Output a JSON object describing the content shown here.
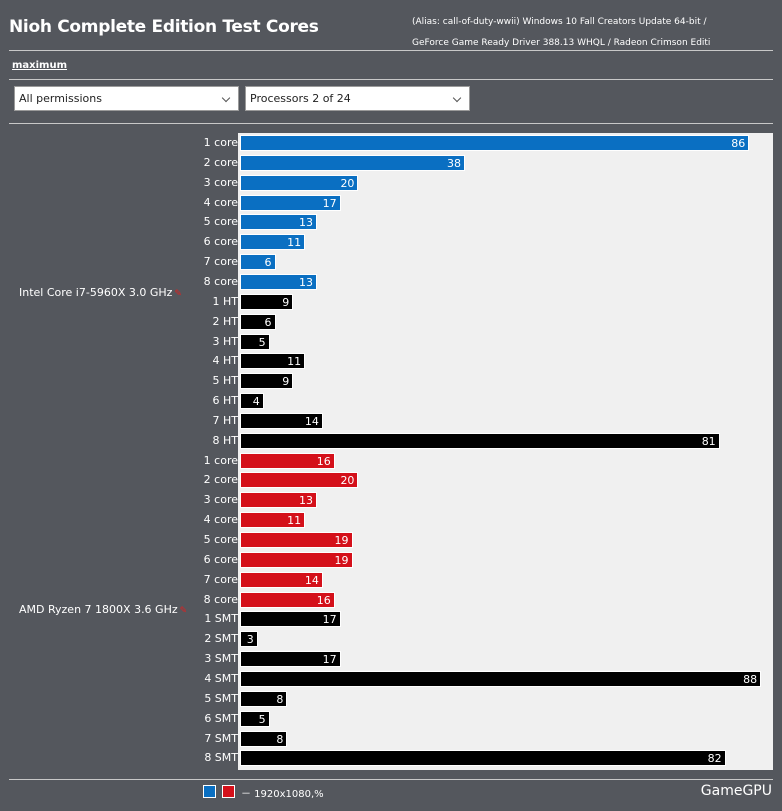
{
  "header": {
    "title": "Nioh Complete Edition Test Cores",
    "subtitle_line1": "(Alias: call-of-duty-wwii) Windows 10 Fall Creators Update 64-bit /",
    "subtitle_line2": "GeForce Game Ready Driver 388.13 WHQL / Radeon Crimson Editi"
  },
  "controls": {
    "view_link": "maximum",
    "permissions_select": "All permissions",
    "processors_select": "Processors 2 of 24"
  },
  "legend": {
    "text": "－ 1920x1080,%",
    "brand": "GameGPU",
    "colors": [
      "#0a6fc2",
      "#d4101a"
    ]
  },
  "colors": {
    "intel_core": "#0a6fc2",
    "amd_core": "#d4101a",
    "thread": "#000000",
    "plot_bg": "#f0f0f0"
  },
  "chart_data": {
    "type": "bar",
    "orientation": "horizontal",
    "title": "Nioh Complete Edition Test Cores",
    "xlim": [
      0,
      90
    ],
    "groups": [
      {
        "name": "Intel Core i7-5960X 3.0 GHz",
        "marker": "✎",
        "categories": [
          "1 core",
          "2 core",
          "3 core",
          "4 core",
          "5 core",
          "6 core",
          "7 core",
          "8 core",
          "1 HT",
          "2 HT",
          "3 HT",
          "4 HT",
          "5 HT",
          "6 HT",
          "7 HT",
          "8 HT"
        ],
        "values": [
          86,
          38,
          20,
          17,
          13,
          11,
          6,
          13,
          9,
          6,
          5,
          11,
          9,
          4,
          14,
          81
        ],
        "kinds": [
          "core",
          "core",
          "core",
          "core",
          "core",
          "core",
          "core",
          "core",
          "thread",
          "thread",
          "thread",
          "thread",
          "thread",
          "thread",
          "thread",
          "thread"
        ]
      },
      {
        "name": "AMD Ryzen 7 1800X 3.6 GHz",
        "marker": "✎",
        "categories": [
          "1 core",
          "2 core",
          "3 core",
          "4 core",
          "5 core",
          "6 core",
          "7 core",
          "8 core",
          "1 SMT",
          "2 SMT",
          "3 SMT",
          "4 SMT",
          "5 SMT",
          "6 SMT",
          "7 SMT",
          "8 SMT"
        ],
        "values": [
          16,
          20,
          13,
          11,
          19,
          19,
          14,
          16,
          17,
          3,
          17,
          88,
          8,
          5,
          8,
          82
        ],
        "kinds": [
          "core",
          "core",
          "core",
          "core",
          "core",
          "core",
          "core",
          "core",
          "thread",
          "thread",
          "thread",
          "thread",
          "thread",
          "thread",
          "thread",
          "thread"
        ]
      }
    ]
  }
}
